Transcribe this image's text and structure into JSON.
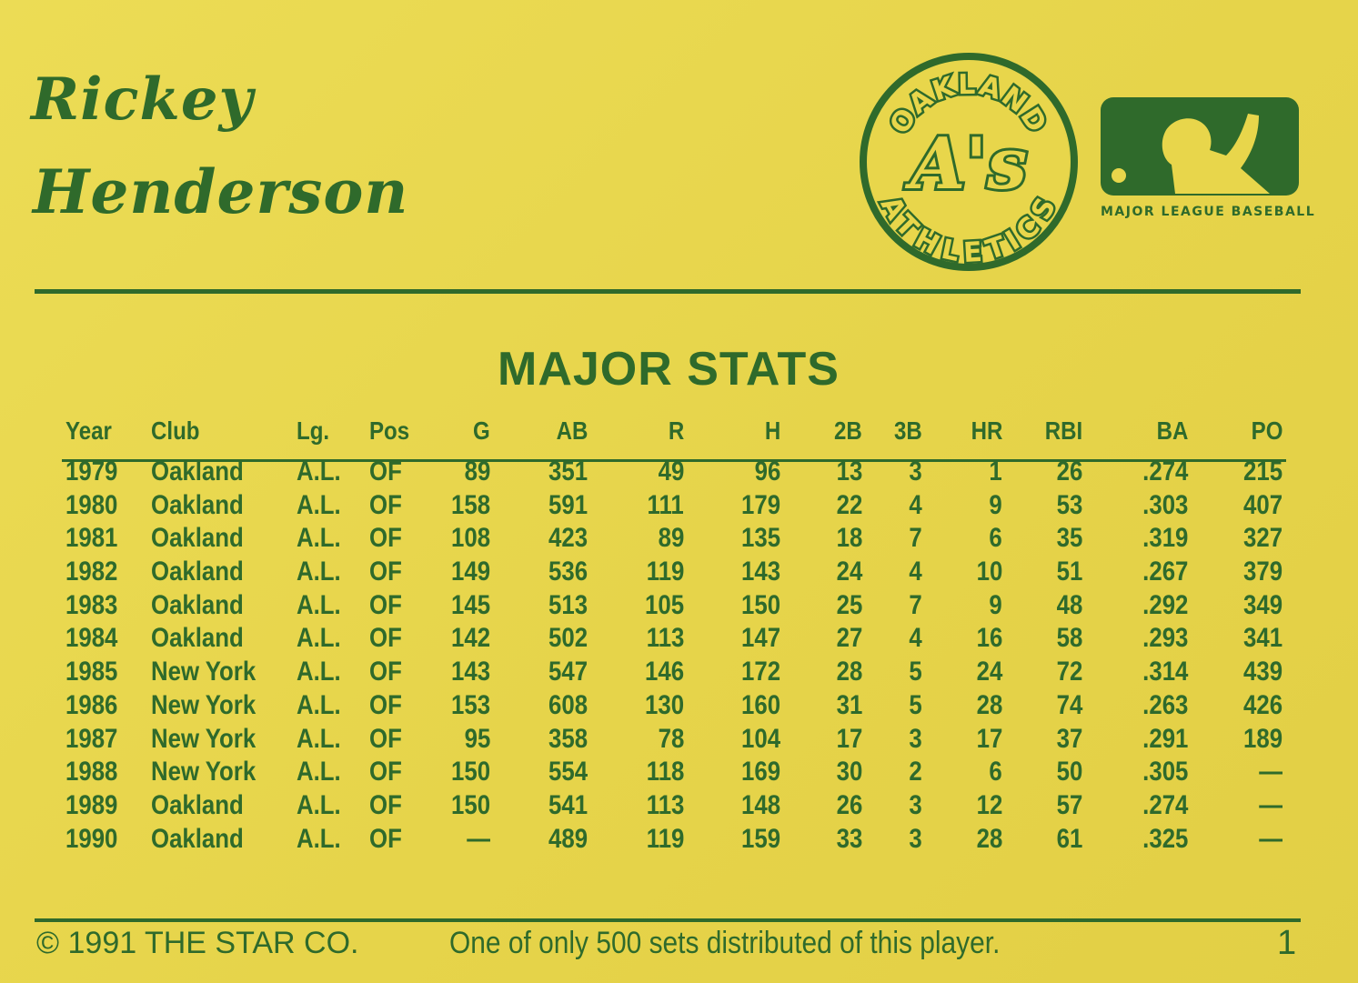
{
  "player": {
    "first_name": "Rickey",
    "last_name": "Henderson"
  },
  "logos": {
    "team": {
      "top_text": "OAKLAND",
      "center_text": "A's",
      "bottom_text": "ATHLETICS",
      "color": "#2f6a2b"
    },
    "league": {
      "caption": "MAJOR LEAGUE BASEBALL"
    }
  },
  "section_title": "MAJOR STATS",
  "table": {
    "headers": [
      "Year",
      "Club",
      "Lg.",
      "Pos",
      "G",
      "AB",
      "R",
      "H",
      "2B",
      "3B",
      "HR",
      "RBI",
      "BA",
      "PO"
    ],
    "rows": [
      [
        "1979",
        "Oakland",
        "A.L.",
        "OF",
        "89",
        "351",
        "49",
        "96",
        "13",
        "3",
        "1",
        "26",
        ".274",
        "215"
      ],
      [
        "1980",
        "Oakland",
        "A.L.",
        "OF",
        "158",
        "591",
        "111",
        "179",
        "22",
        "4",
        "9",
        "53",
        ".303",
        "407"
      ],
      [
        "1981",
        "Oakland",
        "A.L.",
        "OF",
        "108",
        "423",
        "89",
        "135",
        "18",
        "7",
        "6",
        "35",
        ".319",
        "327"
      ],
      [
        "1982",
        "Oakland",
        "A.L.",
        "OF",
        "149",
        "536",
        "119",
        "143",
        "24",
        "4",
        "10",
        "51",
        ".267",
        "379"
      ],
      [
        "1983",
        "Oakland",
        "A.L.",
        "OF",
        "145",
        "513",
        "105",
        "150",
        "25",
        "7",
        "9",
        "48",
        ".292",
        "349"
      ],
      [
        "1984",
        "Oakland",
        "A.L.",
        "OF",
        "142",
        "502",
        "113",
        "147",
        "27",
        "4",
        "16",
        "58",
        ".293",
        "341"
      ],
      [
        "1985",
        "New York",
        "A.L.",
        "OF",
        "143",
        "547",
        "146",
        "172",
        "28",
        "5",
        "24",
        "72",
        ".314",
        "439"
      ],
      [
        "1986",
        "New York",
        "A.L.",
        "OF",
        "153",
        "608",
        "130",
        "160",
        "31",
        "5",
        "28",
        "74",
        ".263",
        "426"
      ],
      [
        "1987",
        "New York",
        "A.L.",
        "OF",
        "95",
        "358",
        "78",
        "104",
        "17",
        "3",
        "17",
        "37",
        ".291",
        "189"
      ],
      [
        "1988",
        "New York",
        "A.L.",
        "OF",
        "150",
        "554",
        "118",
        "169",
        "30",
        "2",
        "6",
        "50",
        ".305",
        "—"
      ],
      [
        "1989",
        "Oakland",
        "A.L.",
        "OF",
        "150",
        "541",
        "113",
        "148",
        "26",
        "3",
        "12",
        "57",
        ".274",
        "—"
      ],
      [
        "1990",
        "Oakland",
        "A.L.",
        "OF",
        "—",
        "489",
        "119",
        "159",
        "33",
        "3",
        "28",
        "61",
        ".325",
        "—"
      ]
    ]
  },
  "footer": {
    "copyright": "© 1991 THE STAR CO.",
    "note": "One of only 500 sets distributed of this player.",
    "card_number": "1"
  }
}
